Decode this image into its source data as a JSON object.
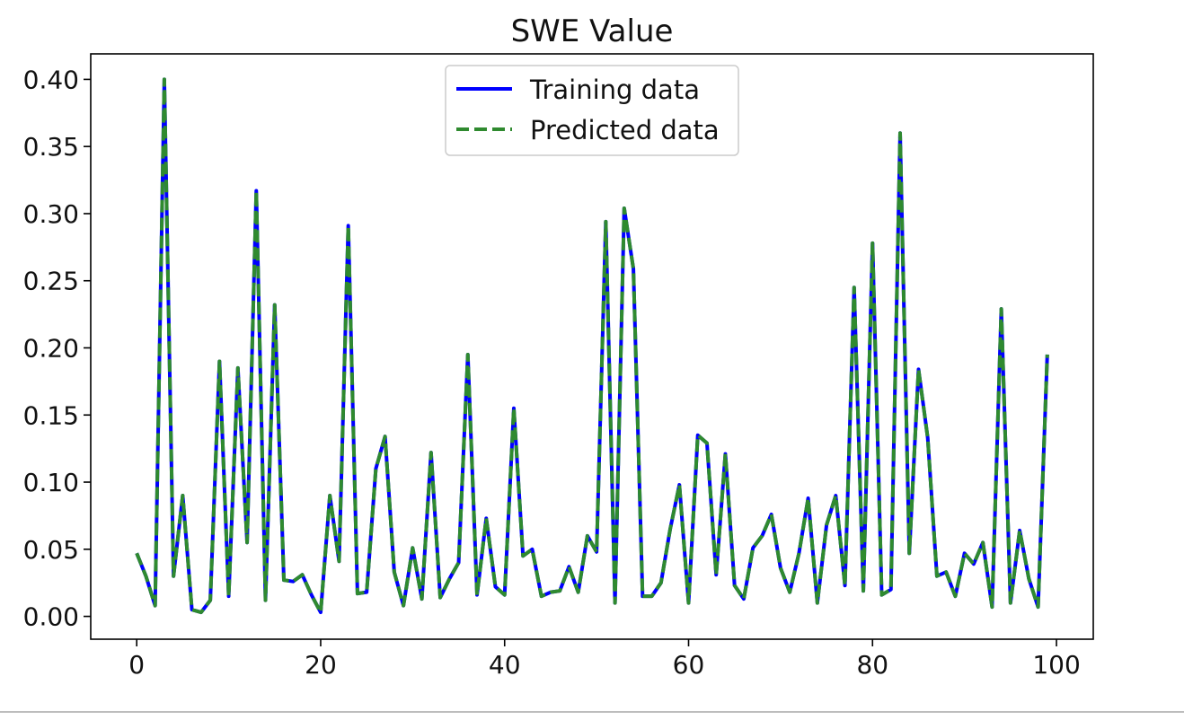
{
  "chart_data": {
    "type": "line",
    "title": "SWE Value",
    "xlabel": "",
    "ylabel": "",
    "xlim": [
      -5,
      104
    ],
    "ylim": [
      -0.017,
      0.419
    ],
    "xticks": [
      0,
      20,
      40,
      60,
      80,
      100
    ],
    "yticks": [
      0.0,
      0.05,
      0.1,
      0.15,
      0.2,
      0.25,
      0.3,
      0.35,
      0.4
    ],
    "grid": false,
    "legend": "top-center",
    "x": [
      0,
      1,
      2,
      3,
      4,
      5,
      6,
      7,
      8,
      9,
      10,
      11,
      12,
      13,
      14,
      15,
      16,
      17,
      18,
      19,
      20,
      21,
      22,
      23,
      24,
      25,
      26,
      27,
      28,
      29,
      30,
      31,
      32,
      33,
      34,
      35,
      36,
      37,
      38,
      39,
      40,
      41,
      42,
      43,
      44,
      45,
      46,
      47,
      48,
      49,
      50,
      51,
      52,
      53,
      54,
      55,
      56,
      57,
      58,
      59,
      60,
      61,
      62,
      63,
      64,
      65,
      66,
      67,
      68,
      69,
      70,
      71,
      72,
      73,
      74,
      75,
      76,
      77,
      78,
      79,
      80,
      81,
      82,
      83,
      84,
      85,
      86,
      87,
      88,
      89,
      90,
      91,
      92,
      93,
      94,
      95,
      96,
      97,
      98,
      99
    ],
    "series": [
      {
        "name": "Training data",
        "color": "#0000ff",
        "style": "solid",
        "values": [
          0.047,
          0.03,
          0.008,
          0.4,
          0.03,
          0.09,
          0.005,
          0.003,
          0.012,
          0.19,
          0.015,
          0.185,
          0.055,
          0.317,
          0.012,
          0.232,
          0.027,
          0.026,
          0.031,
          0.016,
          0.003,
          0.09,
          0.041,
          0.291,
          0.017,
          0.018,
          0.11,
          0.134,
          0.033,
          0.008,
          0.051,
          0.013,
          0.122,
          0.014,
          0.028,
          0.04,
          0.195,
          0.016,
          0.073,
          0.022,
          0.016,
          0.155,
          0.045,
          0.05,
          0.015,
          0.018,
          0.019,
          0.037,
          0.018,
          0.06,
          0.048,
          0.294,
          0.01,
          0.304,
          0.259,
          0.015,
          0.015,
          0.025,
          0.065,
          0.098,
          0.01,
          0.135,
          0.129,
          0.031,
          0.121,
          0.023,
          0.013,
          0.051,
          0.06,
          0.076,
          0.036,
          0.018,
          0.047,
          0.088,
          0.01,
          0.068,
          0.09,
          0.023,
          0.245,
          0.019,
          0.278,
          0.016,
          0.02,
          0.36,
          0.047,
          0.184,
          0.133,
          0.03,
          0.033,
          0.015,
          0.047,
          0.039,
          0.055,
          0.007,
          0.229,
          0.01,
          0.064,
          0.028,
          0.007,
          0.195
        ]
      },
      {
        "name": "Predicted data",
        "color": "#2f8a2f",
        "style": "dashed",
        "values": [
          0.047,
          0.03,
          0.008,
          0.4,
          0.03,
          0.09,
          0.005,
          0.003,
          0.012,
          0.19,
          0.015,
          0.185,
          0.055,
          0.317,
          0.012,
          0.232,
          0.027,
          0.026,
          0.031,
          0.016,
          0.003,
          0.09,
          0.041,
          0.291,
          0.017,
          0.018,
          0.11,
          0.134,
          0.033,
          0.008,
          0.051,
          0.013,
          0.122,
          0.014,
          0.028,
          0.04,
          0.195,
          0.016,
          0.073,
          0.022,
          0.016,
          0.155,
          0.045,
          0.05,
          0.015,
          0.018,
          0.019,
          0.037,
          0.018,
          0.06,
          0.048,
          0.294,
          0.01,
          0.304,
          0.259,
          0.015,
          0.015,
          0.025,
          0.065,
          0.098,
          0.01,
          0.135,
          0.129,
          0.031,
          0.121,
          0.023,
          0.013,
          0.051,
          0.06,
          0.076,
          0.036,
          0.018,
          0.047,
          0.088,
          0.01,
          0.068,
          0.09,
          0.023,
          0.245,
          0.019,
          0.278,
          0.016,
          0.02,
          0.36,
          0.047,
          0.184,
          0.133,
          0.03,
          0.033,
          0.015,
          0.047,
          0.039,
          0.055,
          0.007,
          0.229,
          0.01,
          0.064,
          0.028,
          0.007,
          0.195
        ]
      }
    ]
  }
}
